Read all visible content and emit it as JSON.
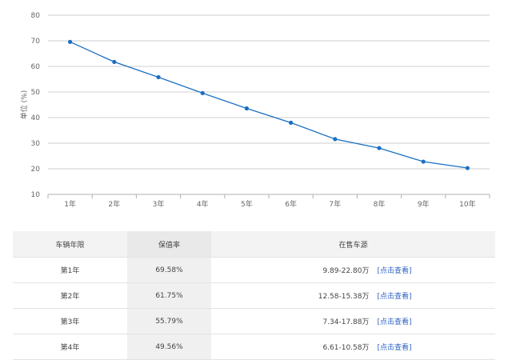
{
  "chart_data": {
    "type": "line",
    "categories": [
      "1年",
      "2年",
      "3年",
      "4年",
      "5年",
      "6年",
      "7年",
      "8年",
      "9年",
      "10年"
    ],
    "values": [
      69.58,
      61.75,
      55.79,
      49.56,
      43.6,
      38.0,
      31.6,
      28.1,
      22.8,
      20.3
    ],
    "ylabel": "单位 (%)",
    "ylim": [
      10,
      80
    ],
    "yticks": [
      10,
      20,
      30,
      40,
      50,
      60,
      70,
      80
    ],
    "grid": true,
    "line_color": "#1a6fc4",
    "grid_color": "#cfcfcf"
  },
  "table": {
    "headers": [
      "车辆年限",
      "保值率",
      "在售车源"
    ],
    "rows": [
      {
        "year": "第1年",
        "rate": "69.58%",
        "price": "9.89-22.80万",
        "link": "[点击查看]"
      },
      {
        "year": "第2年",
        "rate": "61.75%",
        "price": "12.58-15.38万",
        "link": "[点击查看]"
      },
      {
        "year": "第3年",
        "rate": "55.79%",
        "price": "7.34-17.88万",
        "link": "[点击查看]"
      },
      {
        "year": "第4年",
        "rate": "49.56%",
        "price": "6.61-10.58万",
        "link": "[点击查看]"
      }
    ]
  }
}
